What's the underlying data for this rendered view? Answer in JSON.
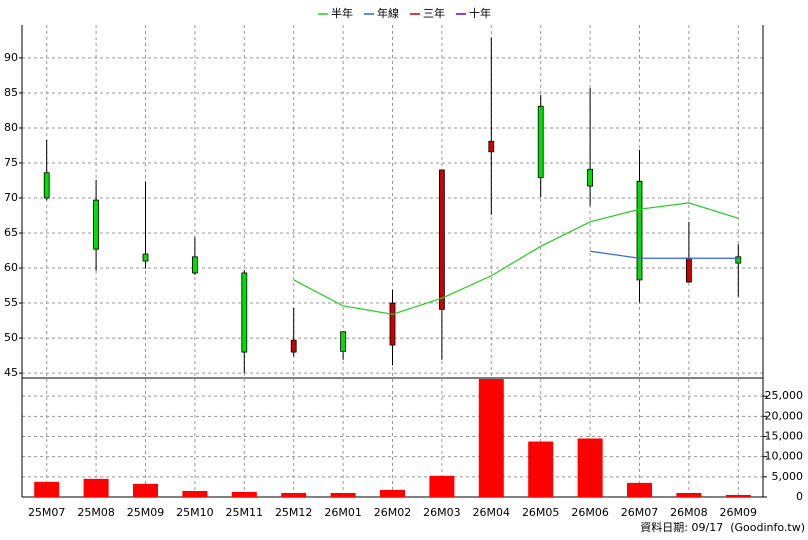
{
  "chart_data": {
    "type": "candlestick",
    "categories": [
      "25M07",
      "25M08",
      "25M09",
      "25M10",
      "25M11",
      "25M12",
      "26M01",
      "26M02",
      "26M03",
      "26M04",
      "26M05",
      "26M06",
      "26M07",
      "26M08",
      "26M09"
    ],
    "open": [
      73.6,
      69.7,
      62.0,
      61.6,
      59.3,
      48.0,
      50.9,
      49.0,
      54.1,
      76.6,
      83.1,
      74.1,
      72.4,
      58.0,
      61.6
    ],
    "high": [
      78.3,
      72.6,
      72.3,
      64.4,
      59.7,
      54.3,
      50.9,
      56.9,
      74.0,
      92.9,
      84.7,
      85.7,
      76.9,
      66.6,
      63.4
    ],
    "low": [
      69.7,
      59.6,
      59.9,
      59.0,
      45.0,
      47.4,
      46.9,
      46.1,
      46.9,
      67.6,
      70.1,
      68.9,
      55.1,
      57.9,
      55.9
    ],
    "close": [
      70.0,
      62.7,
      61.0,
      59.3,
      48.0,
      49.7,
      48.1,
      55.0,
      74.0,
      78.1,
      72.9,
      71.7,
      58.3,
      61.4,
      60.7
    ],
    "up_color": "#cc0000",
    "down_color": "#00dd00",
    "series": [
      {
        "name": "半年",
        "color": "#22cc22",
        "values": [
          null,
          null,
          null,
          null,
          null,
          58.3,
          54.6,
          53.4,
          55.7,
          58.9,
          63.1,
          66.6,
          68.4,
          69.3,
          67.1
        ]
      },
      {
        "name": "年線",
        "color": "#3366cc",
        "values": [
          null,
          null,
          null,
          null,
          null,
          null,
          null,
          null,
          null,
          null,
          null,
          62.4,
          61.4,
          61.4,
          61.4
        ]
      },
      {
        "name": "三年",
        "color": "#cc0000",
        "values": [
          null,
          null,
          null,
          null,
          null,
          null,
          null,
          null,
          null,
          null,
          null,
          null,
          null,
          null,
          null
        ]
      },
      {
        "name": "十年",
        "color": "#6600cc",
        "values": [
          null,
          null,
          null,
          null,
          null,
          null,
          null,
          null,
          null,
          null,
          null,
          null,
          null,
          null,
          null
        ]
      }
    ],
    "volume": {
      "color": "#ff0000",
      "axis": "y2",
      "values": [
        3750,
        4500,
        3250,
        1500,
        1250,
        1000,
        1000,
        1750,
        5250,
        29250,
        13750,
        14500,
        3500,
        1000,
        500
      ]
    },
    "ylim": [
      44.3,
      94.7
    ],
    "yticks": [
      45,
      50,
      55,
      60,
      65,
      70,
      75,
      80,
      85,
      90
    ],
    "y2lim": [
      0,
      29500
    ],
    "y2ticks": [
      0,
      {
        "value": 5000,
        "label": "5,000"
      },
      {
        "value": 10000,
        "label": "10,000"
      },
      {
        "value": 15000,
        "label": "15,000"
      },
      {
        "value": 20000,
        "label": "20,000"
      },
      {
        "value": 25000,
        "label": "25,000"
      }
    ],
    "grid": true,
    "legend": "top",
    "footnote": "資料日期: 09/17  (Goodinfo.tw)"
  }
}
